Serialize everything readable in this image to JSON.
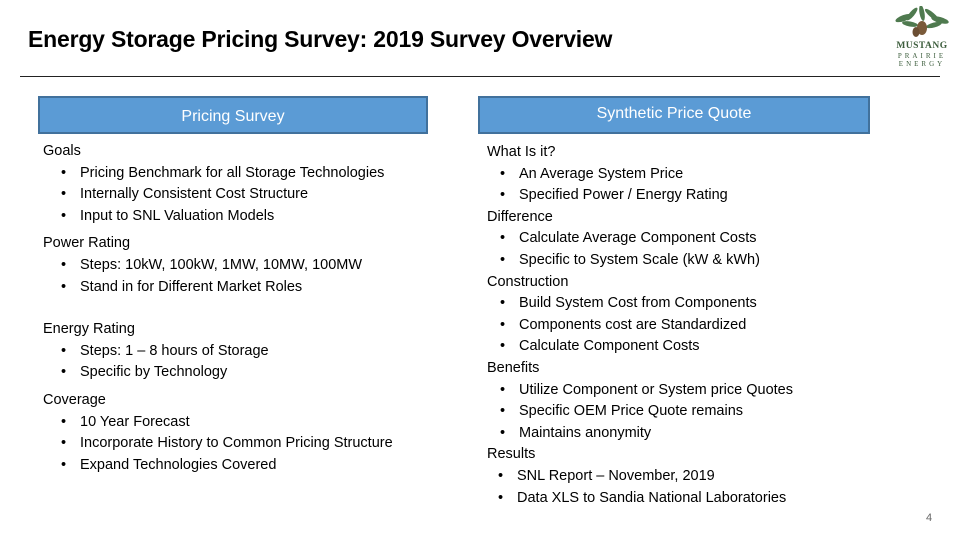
{
  "slide": {
    "title": "Energy Storage Pricing Survey: 2019 Survey Overview",
    "page_number": "4",
    "logo": {
      "line1": "MUSTANG",
      "line2": "PRAIRIE",
      "line3": "ENERGY"
    }
  },
  "left": {
    "header": "Pricing Survey",
    "sections": [
      {
        "heading": "Goals",
        "items": [
          "Pricing Benchmark for all Storage Technologies",
          "Internally Consistent Cost Structure",
          "Input to SNL Valuation Models"
        ]
      },
      {
        "heading": "Power Rating",
        "items": [
          "Steps: 10kW, 100kW, 1MW, 10MW, 100MW",
          "Stand in for Different Market Roles"
        ]
      },
      {
        "heading": "Energy Rating",
        "items": [
          "Steps: 1 – 8 hours of Storage",
          "Specific by Technology"
        ]
      },
      {
        "heading": "Coverage",
        "items": [
          "10 Year Forecast",
          "Incorporate History to Common Pricing Structure",
          "Expand Technologies Covered"
        ]
      }
    ]
  },
  "right": {
    "header": "Synthetic Price Quote",
    "sections": [
      {
        "heading": "What Is it?",
        "items": [
          "An Average System Price",
          "Specified Power / Energy Rating"
        ]
      },
      {
        "heading": "Difference",
        "items": [
          "Calculate Average Component Costs",
          "Specific to System Scale (kW & kWh)"
        ]
      },
      {
        "heading": "Construction",
        "items": [
          "Build System Cost from Components",
          "Components cost are Standardized",
          "Calculate Component Costs"
        ]
      },
      {
        "heading": "Benefits",
        "items": [
          "Utilize Component or System price Quotes",
          "Specific OEM Price Quote remains",
          "Maintains anonymity"
        ]
      },
      {
        "heading": "Results",
        "items": [
          "SNL Report – November, 2019",
          "Data XLS to Sandia National Laboratories"
        ]
      }
    ]
  }
}
